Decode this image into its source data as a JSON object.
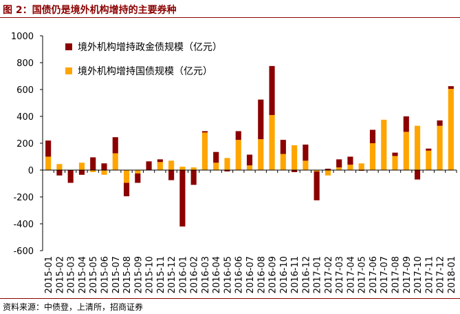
{
  "figure": {
    "title": "图 2：国债仍是境外机构增持的主要券种",
    "source": "资料来源：中债登，上清所，招商证券"
  },
  "colors": {
    "policy": "#8b0000",
    "treasury": "#ffa500",
    "axis": "#000000",
    "title": "#8b0000"
  },
  "chart_data": {
    "type": "bar",
    "stacked": true,
    "title": "",
    "xlabel": "",
    "ylabel": "",
    "ylim": [
      -600,
      1000
    ],
    "yticks": [
      -600,
      -400,
      -200,
      0,
      200,
      400,
      600,
      800,
      1000
    ],
    "ytick_labels": [
      "-600",
      "-400",
      "-200",
      "0",
      "200",
      "400",
      "600",
      "800",
      "1000"
    ],
    "grid": false,
    "legend_position": "top-left",
    "categories": [
      "2015-01",
      "2015-02",
      "2015-03",
      "2015-04",
      "2015-05",
      "2015-06",
      "2015-07",
      "2015-08",
      "2015-09",
      "2015-10",
      "2015-11",
      "2015-12",
      "2016-01",
      "2016-02",
      "2016-03",
      "2016-04",
      "2016-05",
      "2016-06",
      "2016-07",
      "2016-08",
      "2016-09",
      "2016-10",
      "2016-11",
      "2016-12",
      "2017-01",
      "2017-02",
      "2017-03",
      "2017-04",
      "2017-05",
      "2017-06",
      "2017-07",
      "2017-08",
      "2017-09",
      "2017-10",
      "2017-11",
      "2017-12",
      "2018-01"
    ],
    "tick_labels": [
      "2015-01",
      "2015-02",
      "2015-03",
      "2015-04",
      "2015-05",
      "2015-06",
      "2015-07",
      "2015-08",
      "2015-09",
      "2015-10",
      "2015-11",
      "2015-12",
      "2016-01",
      "2016-02",
      "2016-03",
      "2016-04",
      "2016-05",
      "2016-06",
      "2016-07",
      "2016-08",
      "2016-09",
      "2016-10",
      "2016-11",
      "2016-12",
      "2017-01",
      "2017-02",
      "2017-03",
      "2017-04",
      "2017-05",
      "2017-06",
      "2017-07",
      "2017-08",
      "2017-09",
      "2017-10",
      "2017-11",
      "2017-12",
      "2018-01"
    ],
    "series": [
      {
        "name": "境外机构增持国债规模（亿元）",
        "color": "#ffa500",
        "values": [
          100,
          45,
          0,
          55,
          -15,
          -35,
          125,
          -95,
          -25,
          0,
          60,
          70,
          25,
          20,
          280,
          55,
          90,
          225,
          35,
          230,
          410,
          120,
          185,
          70,
          -10,
          -40,
          20,
          40,
          50,
          200,
          375,
          105,
          285,
          330,
          145,
          330,
          605
        ]
      },
      {
        "name": "境外机构增持政金债规模（亿元）",
        "color": "#8b0000",
        "values": [
          120,
          -40,
          -95,
          -35,
          95,
          50,
          120,
          -100,
          -70,
          65,
          20,
          -75,
          -420,
          -110,
          10,
          80,
          -10,
          65,
          80,
          295,
          365,
          105,
          -15,
          120,
          -215,
          10,
          60,
          60,
          -5,
          100,
          0,
          25,
          115,
          -70,
          15,
          40,
          20
        ]
      }
    ],
    "legend": [
      "境外机构增持政金债规模（亿元）",
      "境外机构增持国债规模（亿元）"
    ]
  }
}
